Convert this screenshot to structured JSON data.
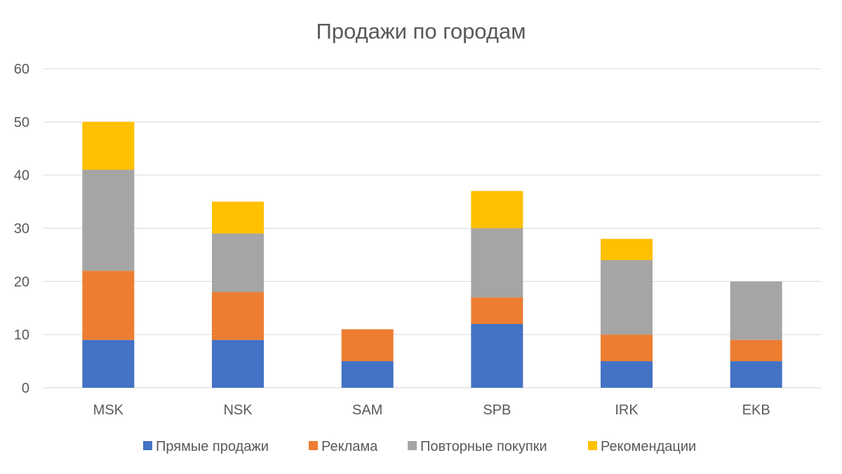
{
  "chart_data": {
    "type": "bar",
    "stacked": true,
    "title": "Продажи по городам",
    "xlabel": "",
    "ylabel": "",
    "ylim": [
      0,
      60
    ],
    "yticks": [
      0,
      10,
      20,
      30,
      40,
      50,
      60
    ],
    "grid": true,
    "legend_position": "bottom",
    "categories": [
      "MSK",
      "NSK",
      "SAM",
      "SPB",
      "IRK",
      "EKB"
    ],
    "series": [
      {
        "name": "Прямые продажи",
        "color": "#4472C4",
        "values": [
          9,
          9,
          5,
          12,
          5,
          5
        ]
      },
      {
        "name": "Реклама",
        "color": "#ED7D31",
        "values": [
          13,
          9,
          6,
          5,
          5,
          4
        ]
      },
      {
        "name": "Повторные покупки",
        "color": "#A5A5A5",
        "values": [
          19,
          11,
          0,
          13,
          14,
          11
        ]
      },
      {
        "name": "Рекомендации",
        "color": "#FFC000",
        "values": [
          9,
          6,
          0,
          7,
          4,
          0
        ]
      }
    ]
  }
}
